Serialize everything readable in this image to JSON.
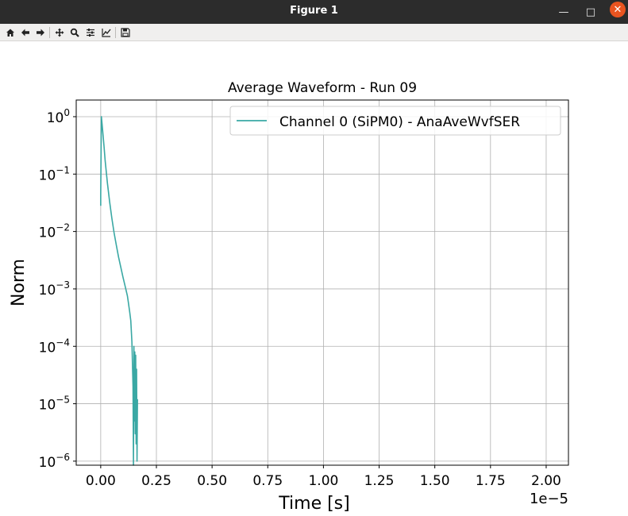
{
  "window": {
    "title": "Figure 1",
    "controls": [
      "minimize-icon",
      "maximize-icon",
      "close-icon"
    ]
  },
  "toolbar": {
    "tools": [
      {
        "name": "home",
        "icon": "home-icon"
      },
      {
        "name": "back",
        "icon": "arrow-left-icon"
      },
      {
        "name": "forward",
        "icon": "arrow-right-icon"
      },
      {
        "name": "pan",
        "icon": "move-icon"
      },
      {
        "name": "zoom",
        "icon": "magnifier-icon"
      },
      {
        "name": "configure-subplots",
        "icon": "sliders-icon"
      },
      {
        "name": "edit-axis",
        "icon": "chart-line-icon"
      },
      {
        "name": "save",
        "icon": "floppy-disk-icon"
      }
    ]
  },
  "chart_data": {
    "type": "line",
    "title": "Average Waveform - Run 09",
    "xlabel": "Time [s]",
    "ylabel": "Norm",
    "x_offset_label": "1e−5",
    "xscale": "linear",
    "yscale": "log",
    "xlim": [
      -0.11,
      2.1
    ],
    "ylim": [
      8.5e-07,
      1.95
    ],
    "xticks": [
      0.0,
      0.25,
      0.5,
      0.75,
      1.0,
      1.25,
      1.5,
      1.75,
      2.0
    ],
    "xtick_labels": [
      "0.00",
      "0.25",
      "0.50",
      "0.75",
      "1.00",
      "1.25",
      "1.50",
      "1.75",
      "2.00"
    ],
    "yticks": [
      1e-06,
      1e-05,
      0.0001,
      0.001,
      0.01,
      0.1,
      1
    ],
    "ytick_labels": [
      {
        "base": "10",
        "exp": "−6"
      },
      {
        "base": "10",
        "exp": "−5"
      },
      {
        "base": "10",
        "exp": "−4"
      },
      {
        "base": "10",
        "exp": "−3"
      },
      {
        "base": "10",
        "exp": "−2"
      },
      {
        "base": "10",
        "exp": "−1"
      },
      {
        "base": "10",
        "exp": "0"
      }
    ],
    "grid": true,
    "legend_position": "top-right",
    "series": [
      {
        "name": "Channel 0 (SiPM0) - AnaAveWvfSER",
        "color": "#3aa8a4",
        "x": [
          0.0,
          0.0,
          0.003,
          0.006,
          0.01,
          0.015,
          0.02,
          0.03,
          0.04,
          0.05,
          0.06,
          0.07,
          0.08,
          0.09,
          0.1,
          0.11,
          0.12,
          0.125,
          0.13,
          0.135,
          0.14,
          0.145,
          0.147,
          0.149,
          0.151,
          0.153,
          0.155,
          0.157,
          0.159,
          0.161,
          0.163,
          0.165
        ],
        "y": [
          0.028,
          0.045,
          1.0,
          0.75,
          0.5,
          0.3,
          0.17,
          0.07,
          0.033,
          0.017,
          0.0095,
          0.0058,
          0.0036,
          0.0024,
          0.0016,
          0.0011,
          0.00075,
          0.00055,
          0.0004,
          0.00028,
          0.00012,
          2e-05,
          8e-07,
          0.0001,
          5e-06,
          8e-05,
          3e-06,
          7e-05,
          2e-06,
          4e-05,
          1e-06,
          1.2e-05
        ]
      }
    ]
  }
}
